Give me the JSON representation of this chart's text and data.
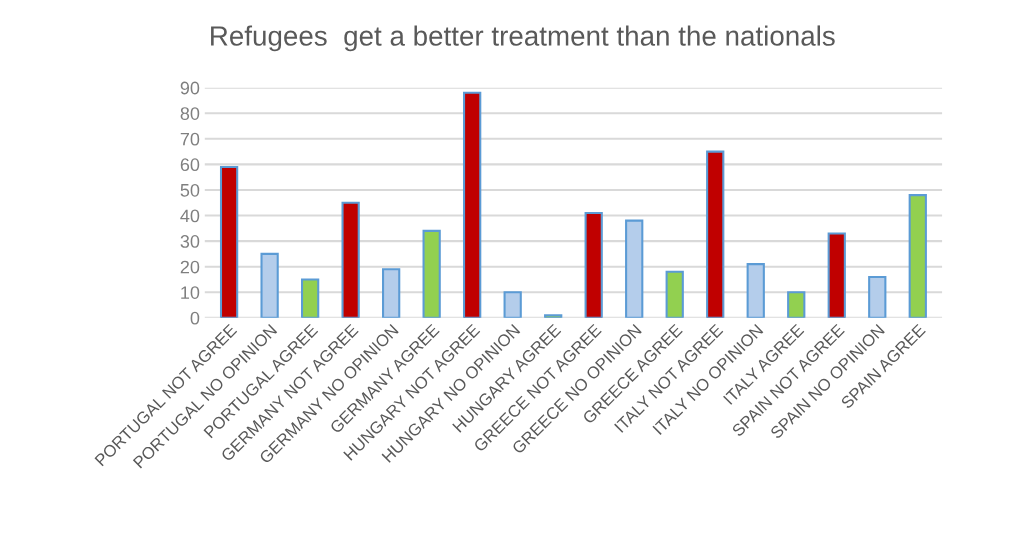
{
  "chart_data": {
    "type": "bar",
    "title": "Refugees  get a better treatment than the nationals",
    "categories": [
      "PORTUGAL NOT AGREE",
      "PORTUGAL NO OPINION",
      "PORTUGAL AGREE",
      "GERMANY NOT AGREE",
      "GERMANY NO OPINION",
      "GERMANY AGREE",
      "HUNGARY NOT AGREE",
      "HUNGARY NO OPINION",
      "HUNGARY AGREE",
      "GREECE NOT AGREE",
      "GREECE NO OPINION",
      "GREECE AGREE",
      "ITALY NOT AGREE",
      "ITALY NO OPINION",
      "ITALY AGREE",
      "SPAIN NOT AGREE",
      "SPAIN NO OPINION",
      "SPAIN AGREE"
    ],
    "values": [
      59,
      25,
      15,
      45,
      19,
      34,
      88,
      10,
      1,
      41,
      38,
      18,
      65,
      21,
      10,
      33,
      16,
      48
    ],
    "colors": [
      "#c00000",
      "#b4cdeb",
      "#92d050",
      "#c00000",
      "#b4cdeb",
      "#92d050",
      "#c00000",
      "#b4cdeb",
      "#92d050",
      "#c00000",
      "#b4cdeb",
      "#92d050",
      "#c00000",
      "#b4cdeb",
      "#92d050",
      "#c00000",
      "#b4cdeb",
      "#92d050"
    ],
    "ylim": [
      0,
      90
    ],
    "yticks": [
      0,
      10,
      20,
      30,
      40,
      50,
      60,
      70,
      80,
      90
    ],
    "grid": "y"
  }
}
